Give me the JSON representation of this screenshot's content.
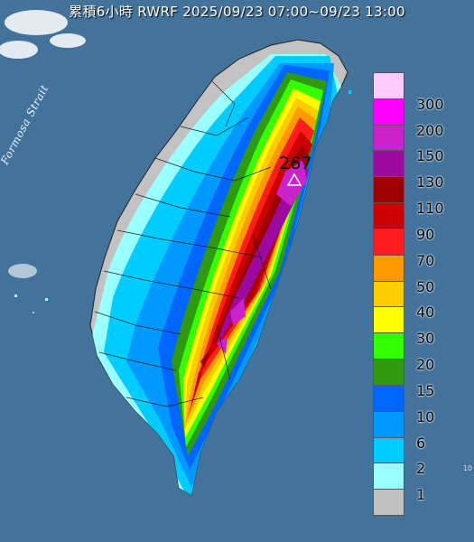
{
  "title": "累積6小時 RWRF 2025/09/23 07:00~09/23 13:00",
  "strait_label": "Formosa Strait",
  "max_marker": {
    "value": "267"
  },
  "legend": {
    "items": [
      {
        "label": "300",
        "color": "#ffcbff"
      },
      {
        "label": "200",
        "color": "#fe00fe"
      },
      {
        "label": "150",
        "color": "#cc22cc"
      },
      {
        "label": "130",
        "color": "#9c0aa0"
      },
      {
        "label": "110",
        "color": "#9e0000"
      },
      {
        "label": "90",
        "color": "#cc0000"
      },
      {
        "label": "70",
        "color": "#ff1c1c"
      },
      {
        "label": "50",
        "color": "#ff9900"
      },
      {
        "label": "40",
        "color": "#ffcc00"
      },
      {
        "label": "30",
        "color": "#ffff00"
      },
      {
        "label": "20",
        "color": "#33ff00"
      },
      {
        "label": "15",
        "color": "#2f9a0e"
      },
      {
        "label": "10",
        "color": "#0066ff"
      },
      {
        "label": "6",
        "color": "#0099ff"
      },
      {
        "label": "2",
        "color": "#00ccff"
      },
      {
        "label": "1",
        "color": "#99ffff"
      },
      {
        "label": "",
        "color": "#c0c0c0"
      }
    ]
  },
  "corner_text": "10"
}
